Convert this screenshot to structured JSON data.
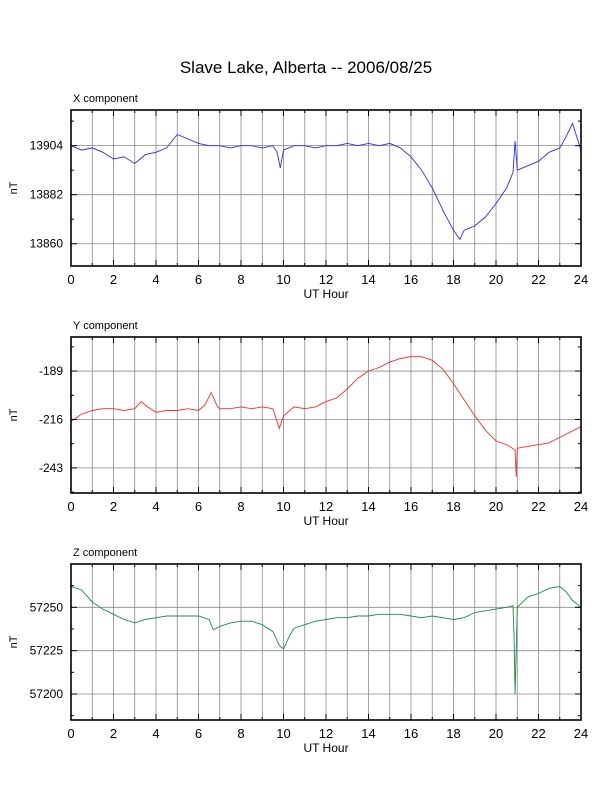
{
  "title": "Slave Lake, Alberta -- 2006/08/25",
  "colors": {
    "x": "#2b2bff",
    "y": "#ff2b2b",
    "z": "#1f8a4a",
    "grid": "#8a8a8a",
    "frame": "#000000"
  },
  "chart_data": [
    {
      "type": "line",
      "title": "X component",
      "xlabel": "UT Hour",
      "ylabel": "nT",
      "xlim": [
        0,
        24
      ],
      "ylim": [
        13850,
        13920
      ],
      "xticks": [
        "0",
        "2",
        "4",
        "6",
        "8",
        "10",
        "12",
        "14",
        "16",
        "18",
        "20",
        "22",
        "24"
      ],
      "yticks": [
        {
          "value": 13904,
          "label": "13904"
        },
        {
          "value": 13882,
          "label": "13882"
        },
        {
          "value": 13860,
          "label": "13860"
        }
      ],
      "grid": true,
      "series": [
        {
          "color": "#2b2bff",
          "points": [
            [
              0,
              13904
            ],
            [
              0.5,
              13902
            ],
            [
              1,
              13903
            ],
            [
              1.5,
              13901
            ],
            [
              2,
              13898
            ],
            [
              2.5,
              13899
            ],
            [
              3,
              13896
            ],
            [
              3.5,
              13900
            ],
            [
              4,
              13901
            ],
            [
              4.5,
              13903
            ],
            [
              5,
              13909
            ],
            [
              5.5,
              13907
            ],
            [
              6,
              13905
            ],
            [
              6.5,
              13904
            ],
            [
              7,
              13904
            ],
            [
              7.5,
              13903
            ],
            [
              8,
              13904
            ],
            [
              8.5,
              13904
            ],
            [
              9,
              13903
            ],
            [
              9.5,
              13904
            ],
            [
              9.7,
              13901
            ],
            [
              9.85,
              13894
            ],
            [
              10,
              13902
            ],
            [
              10.5,
              13904
            ],
            [
              11,
              13904
            ],
            [
              11.5,
              13903
            ],
            [
              12,
              13904
            ],
            [
              12.5,
              13904
            ],
            [
              13,
              13905
            ],
            [
              13.5,
              13904
            ],
            [
              14,
              13905
            ],
            [
              14.5,
              13904
            ],
            [
              15,
              13905
            ],
            [
              15.5,
              13903
            ],
            [
              16,
              13899
            ],
            [
              16.5,
              13893
            ],
            [
              17,
              13885
            ],
            [
              17.5,
              13875
            ],
            [
              18,
              13866
            ],
            [
              18.3,
              13862
            ],
            [
              18.5,
              13866
            ],
            [
              19,
              13868
            ],
            [
              19.5,
              13872
            ],
            [
              20,
              13878
            ],
            [
              20.5,
              13885
            ],
            [
              20.8,
              13892
            ],
            [
              20.9,
              13906
            ],
            [
              21,
              13893
            ],
            [
              21.5,
              13895
            ],
            [
              22,
              13897
            ],
            [
              22.5,
              13901
            ],
            [
              23,
              13903
            ],
            [
              23.3,
              13908
            ],
            [
              23.6,
              13914
            ],
            [
              24,
              13902
            ]
          ]
        }
      ]
    },
    {
      "type": "line",
      "title": "Y component",
      "xlabel": "UT Hour",
      "ylabel": "nT",
      "xlim": [
        0,
        24
      ],
      "ylim": [
        -257,
        -170
      ],
      "xticks": [
        "0",
        "2",
        "4",
        "6",
        "8",
        "10",
        "12",
        "14",
        "16",
        "18",
        "20",
        "22",
        "24"
      ],
      "yticks": [
        {
          "value": -189,
          "label": "-189"
        },
        {
          "value": -216,
          "label": "-216"
        },
        {
          "value": -243,
          "label": "-243"
        }
      ],
      "grid": true,
      "series": [
        {
          "color": "#ff2b2b",
          "points": [
            [
              0,
              -217
            ],
            [
              0.5,
              -213
            ],
            [
              1,
              -211
            ],
            [
              1.5,
              -210
            ],
            [
              2,
              -210
            ],
            [
              2.5,
              -211
            ],
            [
              3,
              -210
            ],
            [
              3.3,
              -206
            ],
            [
              3.6,
              -209
            ],
            [
              4,
              -212
            ],
            [
              4.5,
              -211
            ],
            [
              5,
              -211
            ],
            [
              5.5,
              -210
            ],
            [
              6,
              -211
            ],
            [
              6.3,
              -208
            ],
            [
              6.6,
              -201
            ],
            [
              6.9,
              -209
            ],
            [
              7,
              -210
            ],
            [
              7.5,
              -210
            ],
            [
              8,
              -209
            ],
            [
              8.5,
              -210
            ],
            [
              9,
              -209
            ],
            [
              9.5,
              -210
            ],
            [
              9.8,
              -221
            ],
            [
              10,
              -214
            ],
            [
              10.5,
              -209
            ],
            [
              11,
              -210
            ],
            [
              11.5,
              -209
            ],
            [
              12,
              -206
            ],
            [
              12.5,
              -204
            ],
            [
              13,
              -199
            ],
            [
              13.5,
              -193
            ],
            [
              14,
              -189
            ],
            [
              14.5,
              -187
            ],
            [
              15,
              -184
            ],
            [
              15.5,
              -182
            ],
            [
              16,
              -181
            ],
            [
              16.5,
              -181
            ],
            [
              17,
              -183
            ],
            [
              17.5,
              -188
            ],
            [
              18,
              -196
            ],
            [
              18.5,
              -205
            ],
            [
              19,
              -214
            ],
            [
              19.5,
              -222
            ],
            [
              20,
              -228
            ],
            [
              20.5,
              -230
            ],
            [
              20.9,
              -233
            ],
            [
              20.95,
              -248
            ],
            [
              21,
              -232
            ],
            [
              21.5,
              -231
            ],
            [
              22,
              -230
            ],
            [
              22.5,
              -229
            ],
            [
              23,
              -226
            ],
            [
              23.5,
              -223
            ],
            [
              24,
              -220
            ]
          ]
        }
      ]
    },
    {
      "type": "line",
      "title": "Z component",
      "xlabel": "UT Hour",
      "ylabel": "nT",
      "xlim": [
        0,
        24
      ],
      "ylim": [
        57185,
        57275
      ],
      "xticks": [
        "0",
        "2",
        "4",
        "6",
        "8",
        "10",
        "12",
        "14",
        "16",
        "18",
        "20",
        "22",
        "24"
      ],
      "yticks": [
        {
          "value": 57250,
          "label": "57250"
        },
        {
          "value": 57225,
          "label": "57225"
        },
        {
          "value": 57200,
          "label": "57200"
        }
      ],
      "grid": true,
      "series": [
        {
          "color": "#1f8a4a",
          "points": [
            [
              0,
              57262
            ],
            [
              0.5,
              57260
            ],
            [
              1,
              57253
            ],
            [
              1.5,
              57249
            ],
            [
              2,
              57246
            ],
            [
              2.5,
              57243
            ],
            [
              3,
              57241
            ],
            [
              3.5,
              57243
            ],
            [
              4,
              57244
            ],
            [
              4.5,
              57245
            ],
            [
              5,
              57245
            ],
            [
              5.5,
              57245
            ],
            [
              6,
              57245
            ],
            [
              6.5,
              57243
            ],
            [
              6.7,
              57237
            ],
            [
              7,
              57239
            ],
            [
              7.5,
              57241
            ],
            [
              8,
              57242
            ],
            [
              8.5,
              57242
            ],
            [
              9,
              57240
            ],
            [
              9.5,
              57236
            ],
            [
              9.8,
              57228
            ],
            [
              10,
              57226
            ],
            [
              10.3,
              57234
            ],
            [
              10.5,
              57238
            ],
            [
              11,
              57240
            ],
            [
              11.5,
              57242
            ],
            [
              12,
              57243
            ],
            [
              12.5,
              57244
            ],
            [
              13,
              57244
            ],
            [
              13.5,
              57245
            ],
            [
              14,
              57245
            ],
            [
              14.5,
              57246
            ],
            [
              15,
              57246
            ],
            [
              15.5,
              57246
            ],
            [
              16,
              57245
            ],
            [
              16.5,
              57244
            ],
            [
              17,
              57245
            ],
            [
              17.5,
              57244
            ],
            [
              18,
              57243
            ],
            [
              18.5,
              57244
            ],
            [
              19,
              57247
            ],
            [
              19.5,
              57248
            ],
            [
              20,
              57249
            ],
            [
              20.5,
              57250
            ],
            [
              20.8,
              57251
            ],
            [
              20.85,
              57232
            ],
            [
              20.9,
              57200
            ],
            [
              20.95,
              57225
            ],
            [
              21,
              57250
            ],
            [
              21.5,
              57256
            ],
            [
              22,
              57258
            ],
            [
              22.5,
              57261
            ],
            [
              23,
              57262
            ],
            [
              23.3,
              57259
            ],
            [
              23.6,
              57254
            ],
            [
              24,
              57250
            ]
          ]
        }
      ]
    }
  ]
}
